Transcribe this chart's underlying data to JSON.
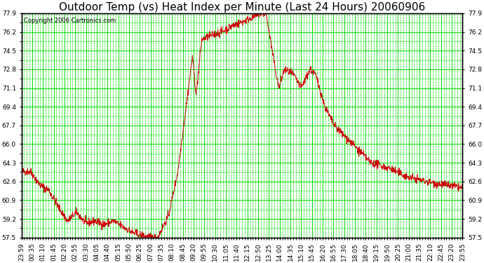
{
  "title": "Outdoor Temp (vs) Heat Index per Minute (Last 24 Hours) 20060906",
  "copyright_text": "Copyright 2006 Cartronics.com",
  "background_color": "#ffffff",
  "plot_bg_color": "#ffffff",
  "line_color": "#cc0000",
  "grid_major_color": "#00dd00",
  "grid_minor_color": "#00dd00",
  "yticks": [
    57.5,
    59.2,
    60.9,
    62.6,
    64.3,
    66.0,
    67.7,
    69.4,
    71.1,
    72.8,
    74.5,
    76.2,
    77.9
  ],
  "ylim": [
    57.5,
    77.9
  ],
  "xtick_labels": [
    "23:59",
    "00:35",
    "01:10",
    "01:45",
    "02:20",
    "02:55",
    "03:30",
    "04:05",
    "04:40",
    "05:15",
    "05:50",
    "06:25",
    "07:00",
    "07:35",
    "08:10",
    "08:45",
    "09:20",
    "09:55",
    "10:30",
    "11:05",
    "11:40",
    "12:15",
    "12:50",
    "13:25",
    "14:00",
    "14:35",
    "15:10",
    "15:45",
    "16:20",
    "16:55",
    "17:30",
    "18:05",
    "18:40",
    "19:15",
    "19:50",
    "20:25",
    "21:00",
    "21:35",
    "22:10",
    "22:45",
    "23:20",
    "23:55"
  ],
  "title_fontsize": 11,
  "copyright_fontsize": 6,
  "tick_fontsize": 6.5,
  "tick_color": "#000000",
  "border_color": "#000000",
  "n_points": 1440
}
